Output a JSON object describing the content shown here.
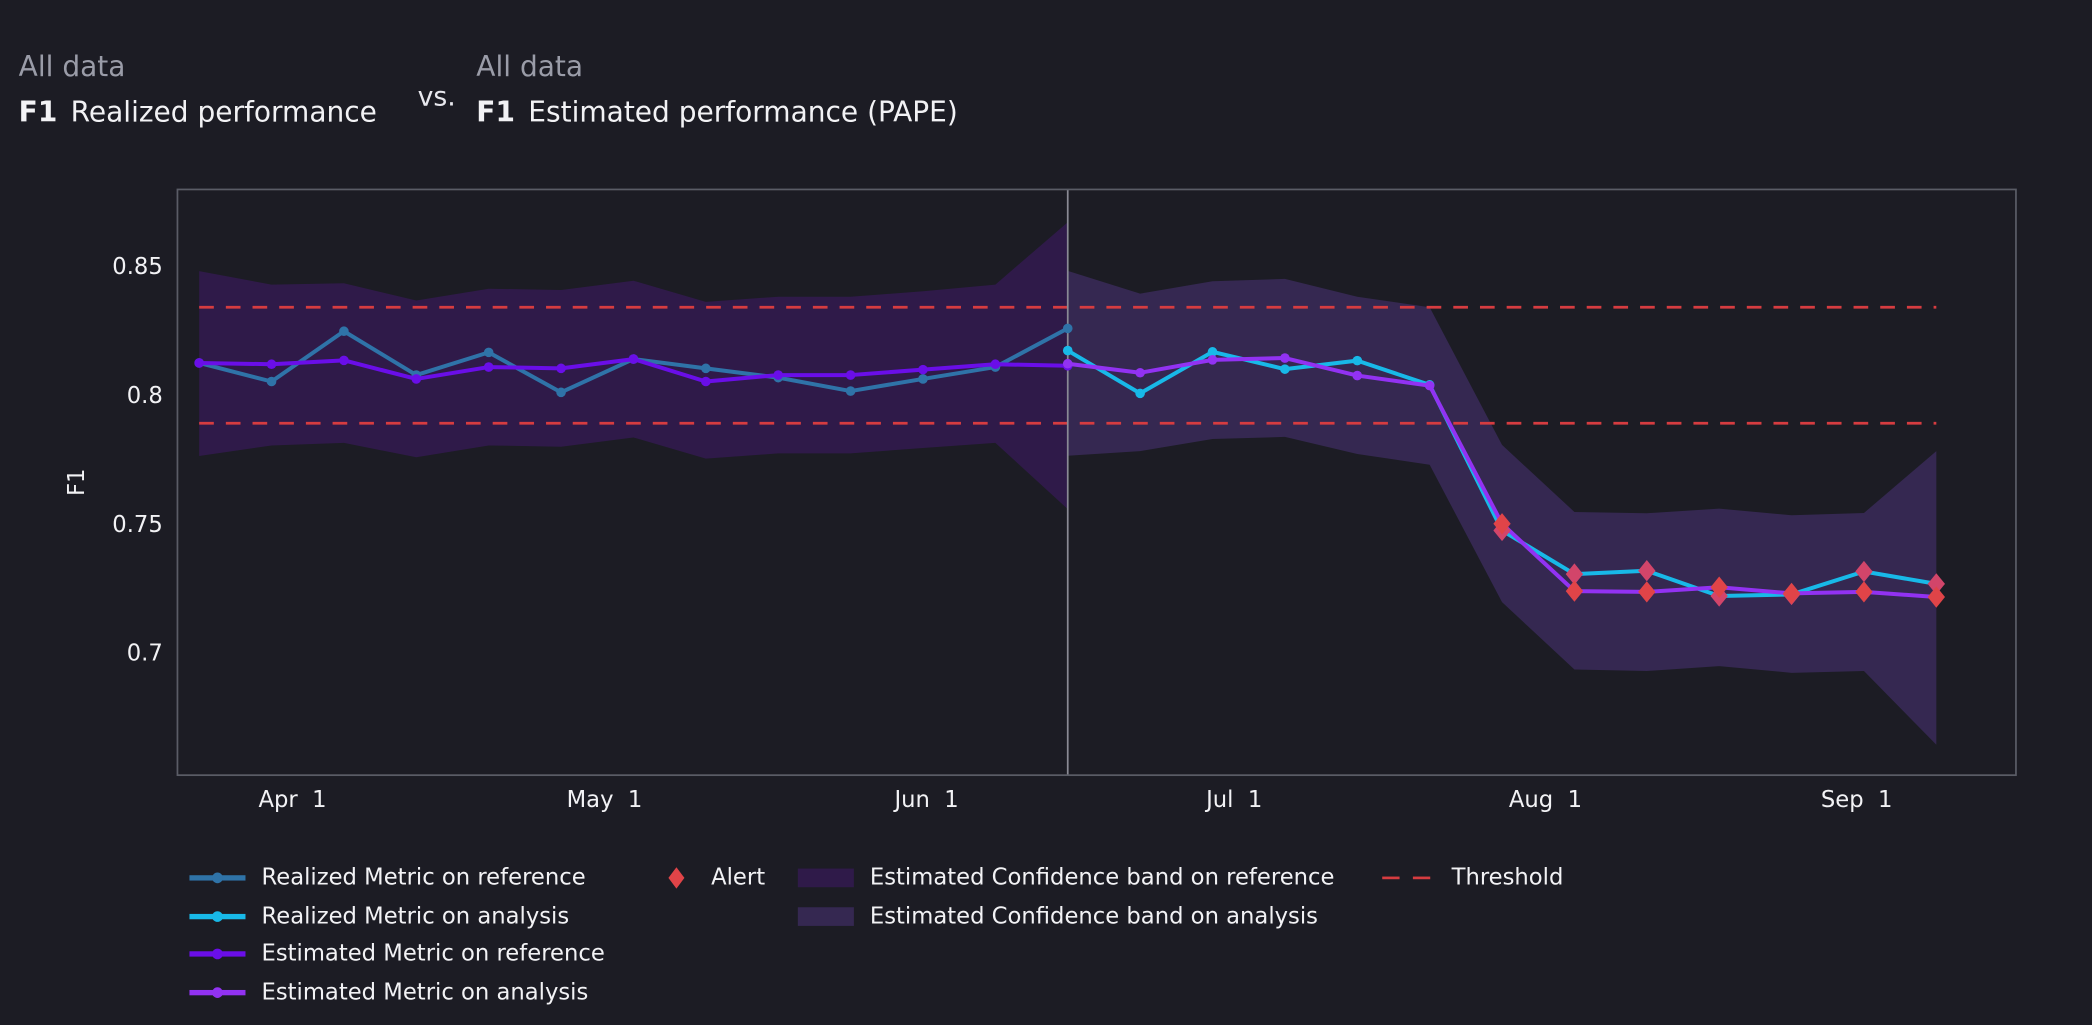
{
  "header": {
    "left": {
      "subtitle": "All data",
      "metric": "F1",
      "title": "Realized performance"
    },
    "vs": "vs.",
    "right": {
      "subtitle": "All data",
      "metric": "F1",
      "title": "Estimated performance (PAPE)"
    }
  },
  "colors": {
    "background": "#1c1c24",
    "realized_reference": "#2f73a8",
    "realized_analysis": "#18b9e8",
    "estimated_reference": "#6a0ee8",
    "estimated_analysis": "#9232f2",
    "band_reference": "#2f1a49",
    "band_analysis": "#352851",
    "threshold": "#d63c40",
    "alert": "#e04448",
    "alert_realized": "#d2456a",
    "frame": "#5a5c66",
    "divider": "#8a8a94"
  },
  "chart_data": {
    "type": "line",
    "ylabel": "F1",
    "xlabel": "",
    "ylim": [
      0.6525,
      0.8797
    ],
    "xlim_index": [
      -0.3,
      25.1
    ],
    "grid": false,
    "yticks": [
      0.7,
      0.75,
      0.8,
      0.85
    ],
    "ytick_labels": [
      "0.7",
      "0.75",
      "0.8",
      "0.85"
    ],
    "xticks": [
      {
        "label": "Apr  1",
        "index": 1.29
      },
      {
        "label": "May  1",
        "index": 5.6
      },
      {
        "label": "Jun  1",
        "index": 10.05
      },
      {
        "label": "Jul  1",
        "index": 14.3
      },
      {
        "label": "Aug  1",
        "index": 18.6
      },
      {
        "label": "Sep  1",
        "index": 22.9
      }
    ],
    "period_boundary_index": 12,
    "thresholds": {
      "upper": 0.834,
      "lower": 0.789
    },
    "reference": {
      "index": [
        0,
        1,
        2,
        3,
        4,
        5,
        6,
        7,
        8,
        9,
        10,
        11,
        12
      ],
      "realized": [
        0.8124,
        0.8052,
        0.8247,
        0.8077,
        0.8165,
        0.801,
        0.8139,
        0.8103,
        0.8067,
        0.8015,
        0.8062,
        0.8108,
        0.8258
      ],
      "estimated": [
        0.8124,
        0.8119,
        0.8134,
        0.8062,
        0.8108,
        0.8103,
        0.8139,
        0.8052,
        0.8077,
        0.8077,
        0.8098,
        0.8119,
        0.8113
      ],
      "band_upper": [
        0.848,
        0.8428,
        0.8433,
        0.8366,
        0.8412,
        0.8407,
        0.8443,
        0.8361,
        0.8381,
        0.8381,
        0.8402,
        0.8428,
        0.867
      ],
      "band_lower": [
        0.7763,
        0.7804,
        0.7814,
        0.7758,
        0.7804,
        0.7799,
        0.7835,
        0.7753,
        0.7773,
        0.7773,
        0.7794,
        0.7814,
        0.7557
      ]
    },
    "analysis": {
      "index": [
        12,
        13,
        14,
        15,
        16,
        17,
        18,
        19,
        20,
        21,
        22,
        23,
        24
      ],
      "realized": [
        0.8172,
        0.8006,
        0.8167,
        0.81,
        0.8133,
        0.8039,
        0.7474,
        0.7305,
        0.7318,
        0.722,
        0.7226,
        0.7315,
        0.7267
      ],
      "estimated": [
        0.8121,
        0.8086,
        0.8136,
        0.8143,
        0.8075,
        0.8036,
        0.75,
        0.7239,
        0.7236,
        0.7254,
        0.723,
        0.7236,
        0.7216
      ],
      "band_upper": [
        0.8481,
        0.8393,
        0.8441,
        0.845,
        0.8381,
        0.834,
        0.7806,
        0.7546,
        0.7541,
        0.7559,
        0.7533,
        0.7542,
        0.7782
      ],
      "band_lower": [
        0.7764,
        0.7782,
        0.7829,
        0.7837,
        0.7771,
        0.7729,
        0.7196,
        0.6935,
        0.6929,
        0.6948,
        0.6922,
        0.6929,
        0.6643
      ],
      "realized_alerts": [
        false,
        false,
        false,
        false,
        false,
        false,
        true,
        true,
        true,
        true,
        true,
        true,
        true
      ],
      "estimated_alerts": [
        false,
        false,
        false,
        false,
        false,
        false,
        true,
        true,
        true,
        true,
        true,
        true,
        true
      ]
    },
    "legend": {
      "placement": "bottom-left",
      "items": [
        {
          "label": "Realized Metric on reference",
          "kind": "line",
          "color_key": "realized_reference"
        },
        {
          "label": "Realized Metric on analysis",
          "kind": "line",
          "color_key": "realized_analysis"
        },
        {
          "label": "Estimated Metric on reference",
          "kind": "line",
          "color_key": "estimated_reference"
        },
        {
          "label": "Estimated Metric on analysis",
          "kind": "line",
          "color_key": "estimated_analysis"
        },
        {
          "label": "Alert",
          "kind": "diamond",
          "color_key": "alert"
        },
        {
          "label": "Estimated Confidence band on reference",
          "kind": "band",
          "color_key": "band_reference"
        },
        {
          "label": "Estimated Confidence band on analysis",
          "kind": "band",
          "color_key": "band_analysis"
        },
        {
          "label": "Threshold",
          "kind": "dash",
          "color_key": "threshold"
        }
      ]
    }
  }
}
